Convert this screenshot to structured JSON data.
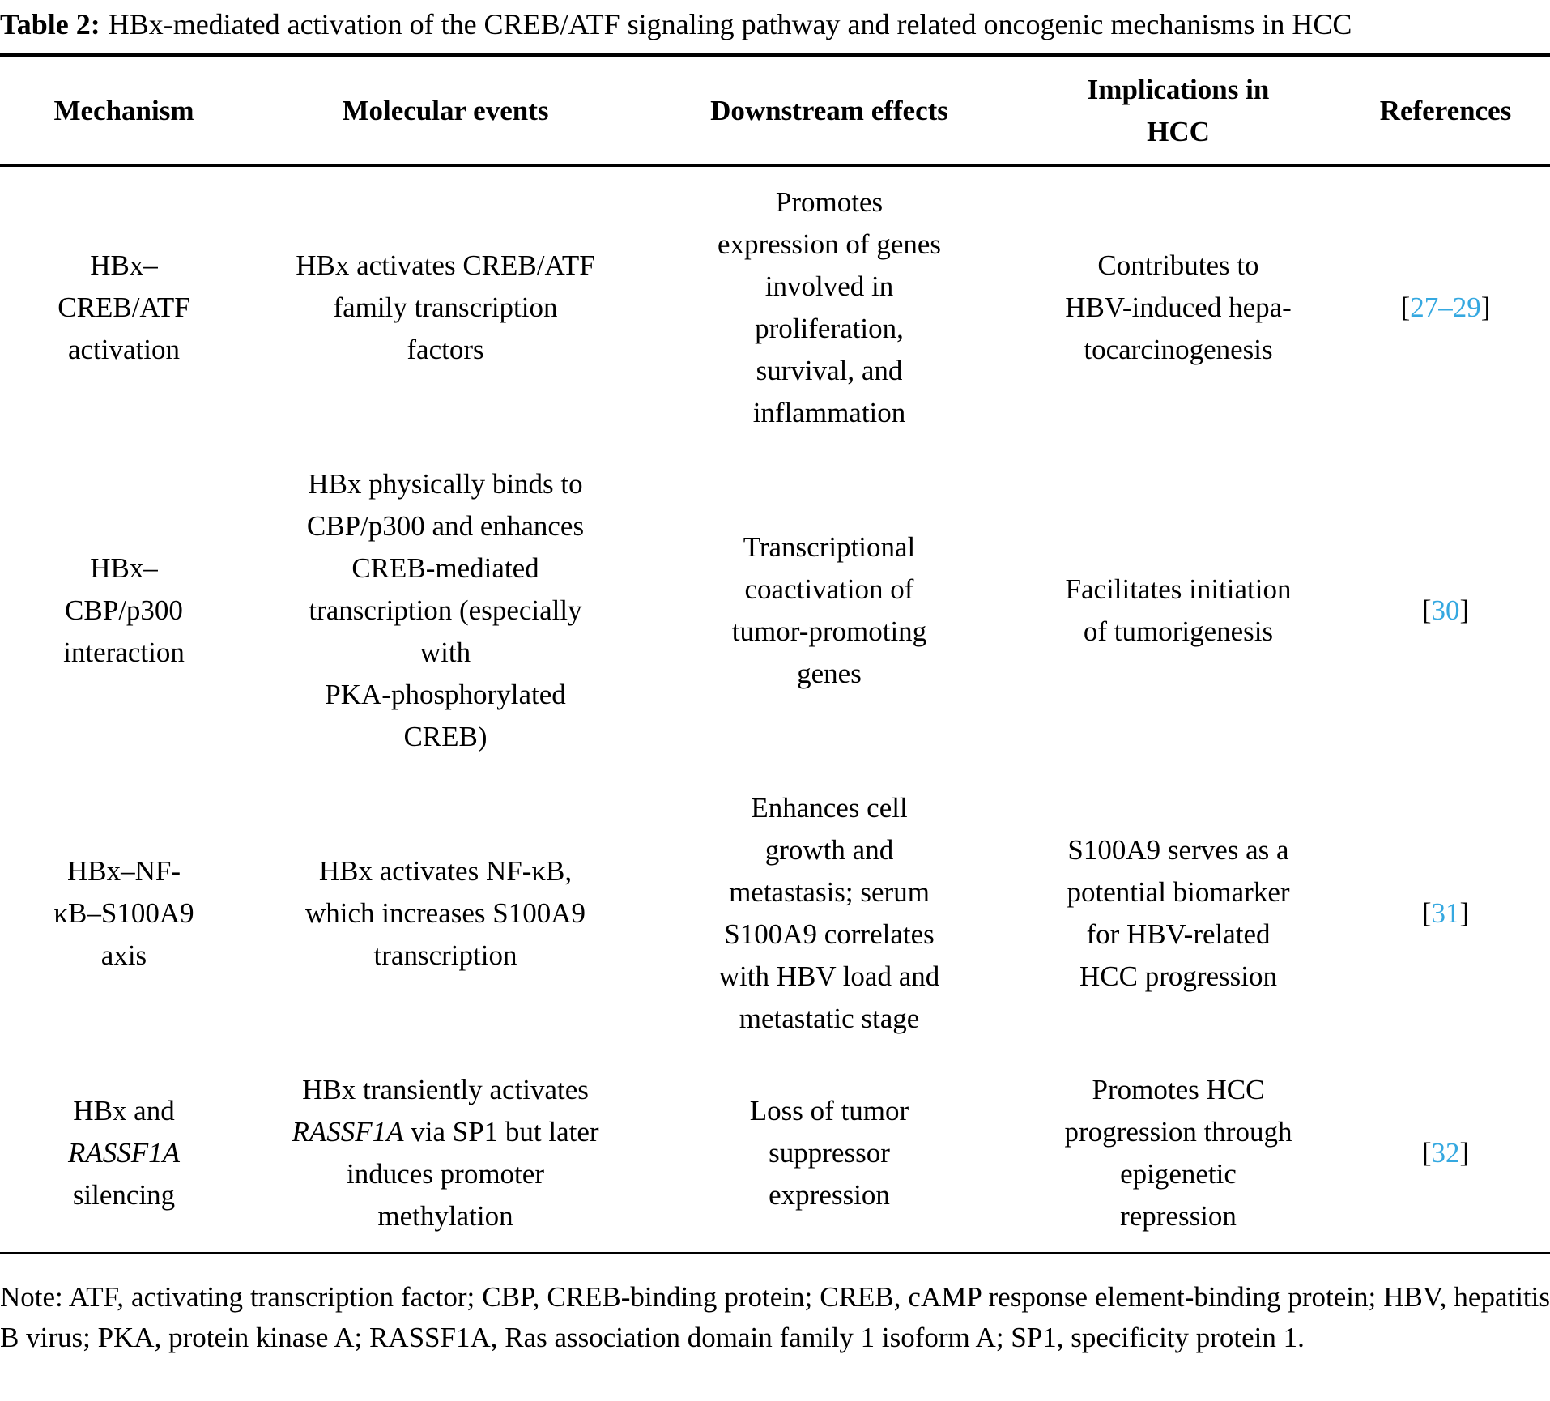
{
  "title": {
    "label": "Table 2:",
    "text": "HBx-mediated activation of the CREB/ATF signaling pathway and related oncogenic mechanisms in HCC"
  },
  "colors": {
    "reference_link": "#35a8e0",
    "text": "#000000",
    "rule": "#000000"
  },
  "table": {
    "headers": [
      "Mechanism",
      "Molecular events",
      "Downstream effects",
      "Implications in\nHCC",
      "References"
    ],
    "rows": [
      {
        "mechanism": "HBx–\nCREB/ATF\nactivation",
        "molecular_events": "HBx activates CREB/ATF\nfamily transcription\nfactors",
        "downstream_effects": "Promotes\nexpression of genes\ninvolved in\nproliferation,\nsurvival, and\ninflammation",
        "implications": "Contributes to\nHBV-induced hepa-\ntocarcinogenesis",
        "reference": [
          {
            "text": "["
          },
          {
            "text": "27–29",
            "ref": true
          },
          {
            "text": "]"
          }
        ]
      },
      {
        "mechanism": "HBx–\nCBP/p300\ninteraction",
        "molecular_events": "HBx physically binds to\nCBP/p300 and enhances\nCREB-mediated\ntranscription (especially\nwith\nPKA-phosphorylated\nCREB)",
        "downstream_effects": "Transcriptional\ncoactivation of\ntumor-promoting\ngenes",
        "implications": "Facilitates initiation\nof tumorigenesis",
        "reference": [
          {
            "text": "["
          },
          {
            "text": "30",
            "ref": true
          },
          {
            "text": "]"
          }
        ]
      },
      {
        "mechanism": "HBx–NF-\nκB–S100A9\naxis",
        "molecular_events": "HBx activates NF-κB,\nwhich increases S100A9\ntranscription",
        "downstream_effects": "Enhances cell\ngrowth and\nmetastasis; serum\nS100A9 correlates\nwith HBV load and\nmetastatic stage",
        "implications": "S100A9 serves as a\npotential biomarker\nfor HBV-related\nHCC progression",
        "reference": [
          {
            "text": "["
          },
          {
            "text": "31",
            "ref": true
          },
          {
            "text": "]"
          }
        ]
      },
      {
        "mechanism_segments": [
          {
            "text": "HBx and\n"
          },
          {
            "text": "RASSF1A",
            "italic": true
          },
          {
            "text": "\nsilencing"
          }
        ],
        "molecular_events_segments": [
          {
            "text": "HBx transiently activates\n"
          },
          {
            "text": "RASSF1A",
            "italic": true
          },
          {
            "text": " via SP1 but later\ninduces promoter\nmethylation"
          }
        ],
        "downstream_effects": "Loss of tumor\nsuppressor\nexpression",
        "implications": "Promotes HCC\nprogression through\nepigenetic\nrepression",
        "reference": [
          {
            "text": "["
          },
          {
            "text": "32",
            "ref": true
          },
          {
            "text": "]"
          }
        ]
      }
    ]
  },
  "note": "Note: ATF, activating transcription factor; CBP, CREB-binding protein; CREB, cAMP response element-binding protein; HBV, hepatitis B virus; PKA, protein kinase A; RASSF1A, Ras association domain family 1 isoform A; SP1, specificity protein 1."
}
